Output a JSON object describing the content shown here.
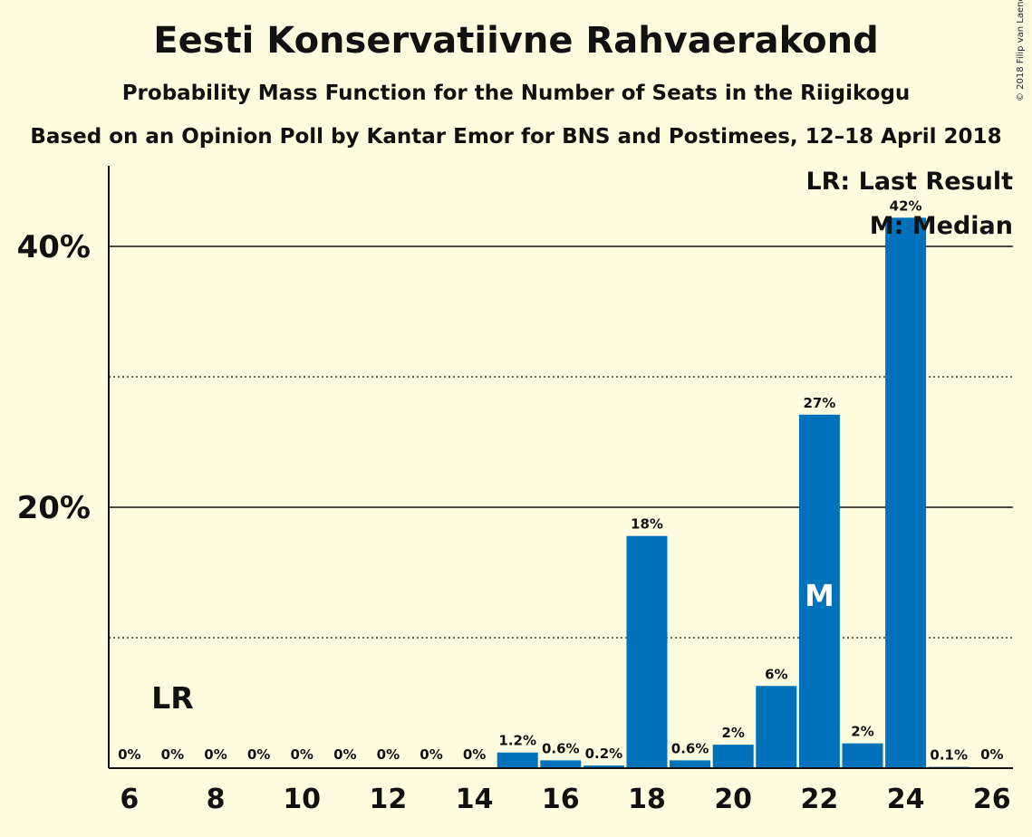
{
  "header": {
    "title": "Eesti Konservatiivne Rahvaerakond",
    "subtitle": "Probability Mass Function for the Number of Seats in the Riigikogu",
    "source": "Based on an Opinion Poll by Kantar Emor for BNS and Postimees, 12–18 April 2018",
    "copyright": "© 2018 Filip van Laenen"
  },
  "legend": {
    "last_result": "LR: Last Result",
    "median": "M: Median",
    "placement": "top-right"
  },
  "colors": {
    "background": "#fffde0",
    "bar": "#0071bb",
    "text": "#111111"
  },
  "chart_data": {
    "type": "bar",
    "title": "Eesti Konservatiivne Rahvaerakond",
    "xlabel": "",
    "ylabel": "",
    "categories": [
      6,
      7,
      8,
      9,
      10,
      11,
      12,
      13,
      14,
      15,
      16,
      17,
      18,
      19,
      20,
      21,
      22,
      23,
      24,
      25,
      26
    ],
    "values": [
      0,
      0,
      0,
      0,
      0,
      0,
      0,
      0,
      0,
      1.2,
      0.6,
      0.2,
      17.8,
      0.6,
      1.8,
      6.3,
      27.1,
      1.9,
      42.2,
      0.1,
      0
    ],
    "data_labels": [
      "0%",
      "0%",
      "0%",
      "0%",
      "0%",
      "0%",
      "0%",
      "0%",
      "0%",
      "1.2%",
      "0.6%",
      "0.2%",
      "18%",
      "0.6%",
      "2%",
      "6%",
      "27%",
      "2%",
      "42%",
      "0.1%",
      "0%"
    ],
    "x_tick_labels": [
      "6",
      "8",
      "10",
      "12",
      "14",
      "16",
      "18",
      "20",
      "22",
      "24",
      "26"
    ],
    "x_tick_values": [
      6,
      8,
      10,
      12,
      14,
      16,
      18,
      20,
      22,
      24,
      26
    ],
    "y_tick_labels": [
      "20%",
      "40%"
    ],
    "y_tick_values": [
      20,
      40
    ],
    "y_dotted_gridlines": [
      10,
      30
    ],
    "ylim": [
      0,
      46
    ],
    "last_result": {
      "seat": 7,
      "label": "LR"
    },
    "median": {
      "seat": 22,
      "label": "M"
    }
  }
}
